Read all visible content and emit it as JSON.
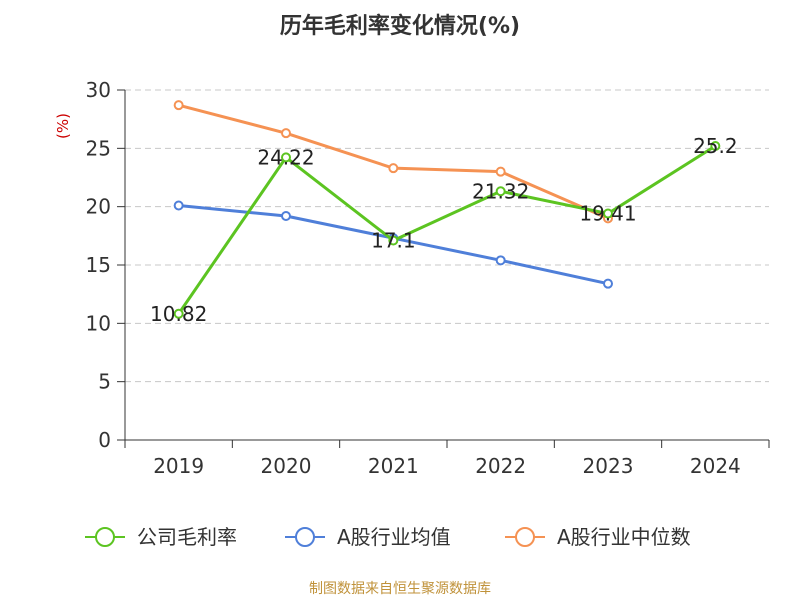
{
  "chart_data": {
    "type": "line",
    "title": "历年毛利率变化情况(%)",
    "ylabel": "(%)",
    "xlabel": "",
    "categories": [
      "2019",
      "2020",
      "2021",
      "2022",
      "2023",
      "2024"
    ],
    "ylim": [
      0,
      30
    ],
    "yticks": [
      0,
      5,
      10,
      15,
      20,
      25,
      30
    ],
    "grid": true,
    "legend_position": "bottom",
    "series": [
      {
        "name": "公司毛利率",
        "color": "#5cc421",
        "values": [
          10.82,
          24.22,
          17.1,
          21.32,
          19.41,
          25.2
        ],
        "labels": [
          "10.82",
          "24.22",
          "17.1",
          "21.32",
          "19.41",
          "25.2"
        ]
      },
      {
        "name": "A股行业均值",
        "color": "#4f7fd9",
        "values": [
          20.1,
          19.2,
          17.3,
          15.4,
          13.4,
          null
        ]
      },
      {
        "name": "A股行业中位数",
        "color": "#f59253",
        "values": [
          28.7,
          26.3,
          23.3,
          23.0,
          19.0,
          null
        ]
      }
    ]
  },
  "footer": {
    "text": "制图数据来自恒生聚源数据库",
    "color": "#c0923a"
  },
  "axis_color": "#333333",
  "ylabel_color": "#cc0000"
}
